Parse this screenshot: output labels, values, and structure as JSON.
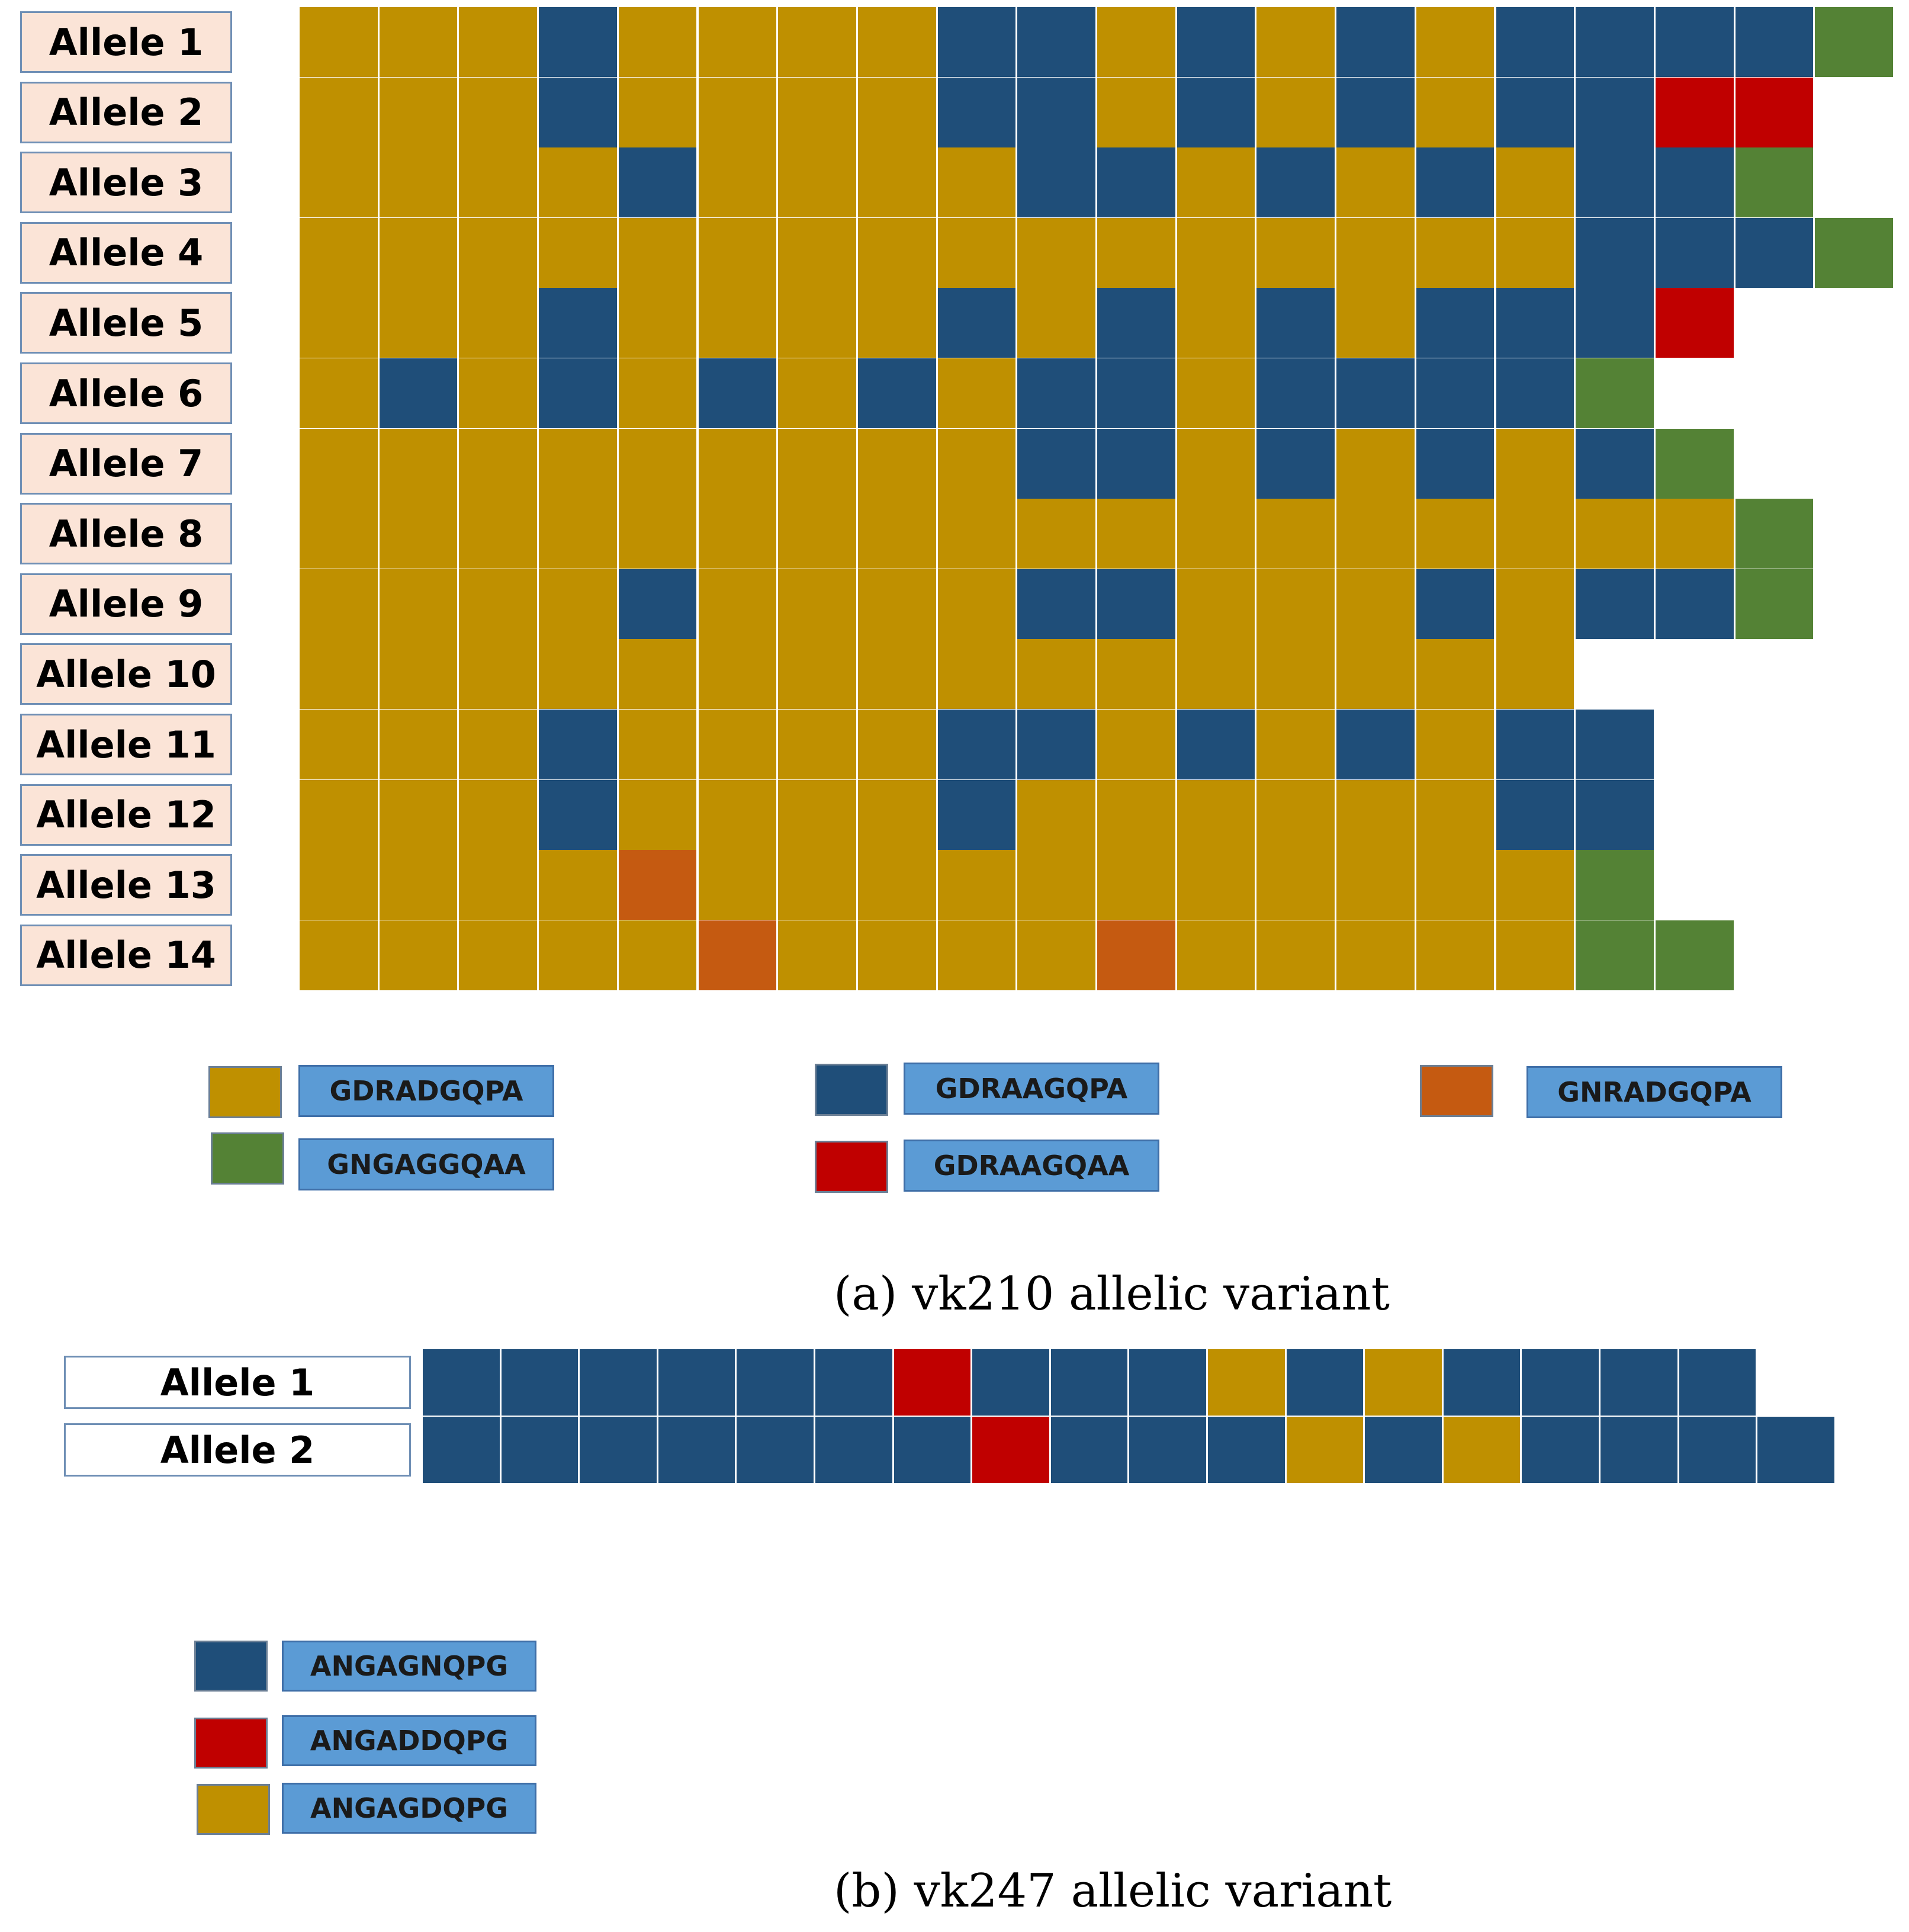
{
  "colors": {
    "Y": "#bf9000",
    "B": "#1f4e79",
    "G": "#548235",
    "R": "#c00000",
    "O": "#c55a11"
  },
  "panel_a": {
    "caption": "(a) vk210 allelic variant",
    "alleles": [
      {
        "label": "Allele 1",
        "seq": "YYYBYYYYBBYBYBYBBBBG"
      },
      {
        "label": "Allele 2",
        "seq": "YYYBYYYYBBYBYBYBBRR"
      },
      {
        "label": "Allele 3",
        "seq": "YYYYBYYYYBBYBYBYBBG"
      },
      {
        "label": "Allele 4",
        "seq": "YYYYYYYYYYYYYYYYBBBG"
      },
      {
        "label": "Allele 5",
        "seq": "YYYBYYYYBYBYBYBBBR"
      },
      {
        "label": "Allele 6",
        "seq": "YBYBYBYBYBBYBBBBG"
      },
      {
        "label": "Allele 7",
        "seq": "YYYYYYYYYBBYBYBYBG"
      },
      {
        "label": "Allele 8",
        "seq": "YYYYYYYYYYYYYYYYYYG"
      },
      {
        "label": "Allele 9",
        "seq": "YYYYBYYYYBBYYYBYBBG"
      },
      {
        "label": "Allele 10",
        "seq": "YYYYYYYYYYYYYYYY"
      },
      {
        "label": "Allele 11",
        "seq": "YYYBYYYYBBYBYBYBB"
      },
      {
        "label": "Allele 12",
        "seq": "YYYBYYYYBYYYYYYBB"
      },
      {
        "label": "Allele 13",
        "seq": "YYYYOYYYYYYYYYYYG"
      },
      {
        "label": "Allele 14",
        "seq": "YYYYYOYYYYOYYYYYGG"
      }
    ],
    "legend": [
      {
        "color": "Y",
        "label": "GDRADGQPA"
      },
      {
        "color": "G",
        "label": "GNGAGGQAA"
      },
      {
        "color": "B",
        "label": "GDRAAGQPA"
      },
      {
        "color": "R",
        "label": "GDRAAGQAA"
      },
      {
        "color": "O",
        "label": "GNRADGQPA"
      }
    ]
  },
  "panel_b": {
    "caption": "(b) vk247 allelic variant",
    "alleles": [
      {
        "label": "Allele 1",
        "seq": "BBBBBBRBBBYBYBBBB"
      },
      {
        "label": "Allele 2",
        "seq": "BBBBBBBRBBBYBYBBBB"
      }
    ],
    "legend": [
      {
        "color": "B",
        "label": "ANGAGNQPG"
      },
      {
        "color": "R",
        "label": "ANGADDQPG"
      },
      {
        "color": "Y",
        "label": "ANGAGDQPG"
      }
    ]
  }
}
